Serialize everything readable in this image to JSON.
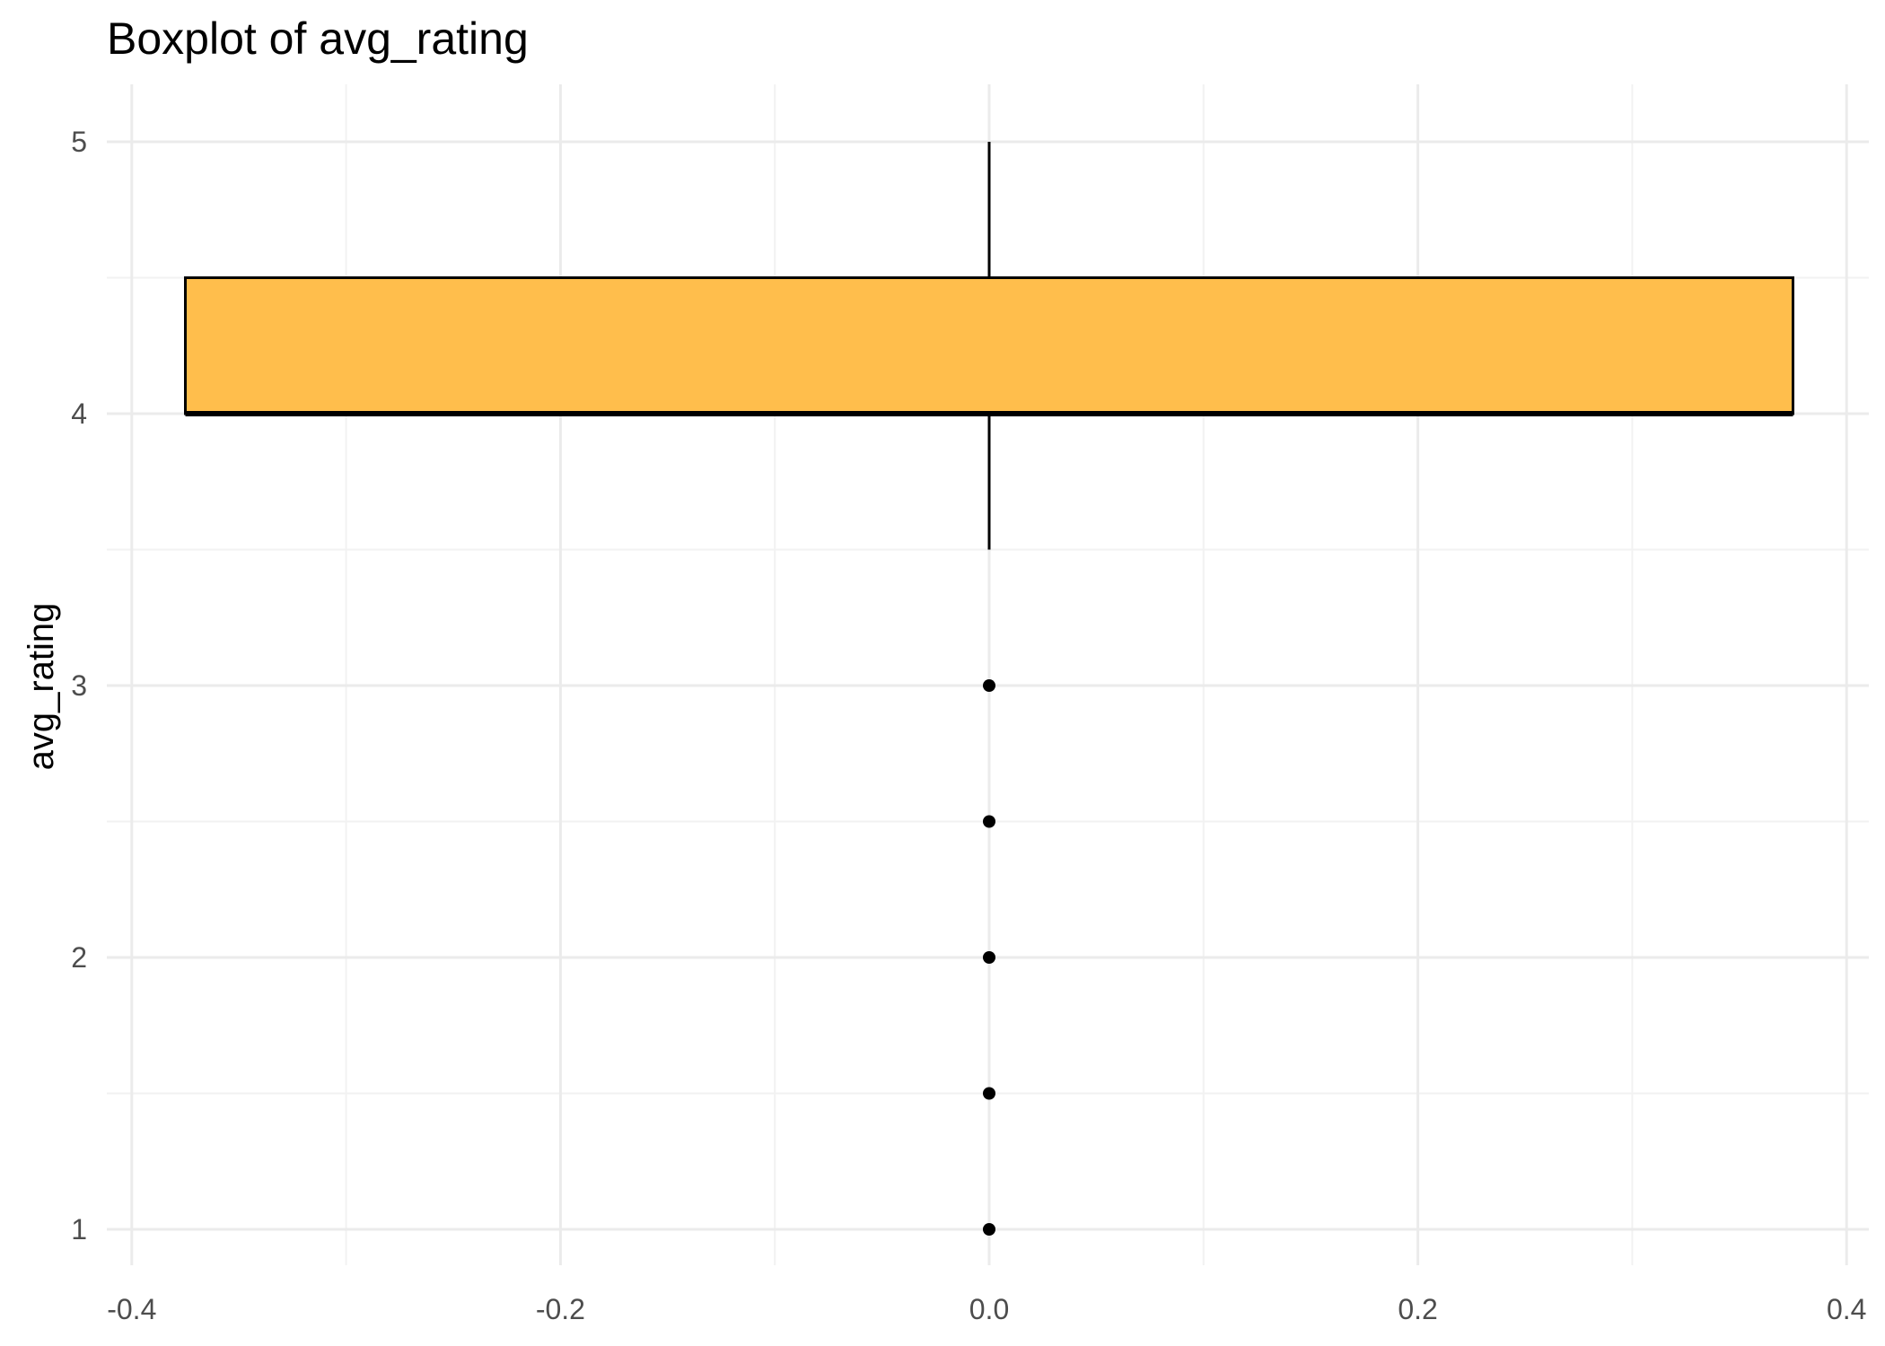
{
  "chart_data": {
    "type": "boxplot",
    "title": "Boxplot of avg_rating",
    "xlabel": "",
    "ylabel": "avg_rating",
    "xlim": [
      -0.4,
      0.4
    ],
    "ylim": [
      1,
      5
    ],
    "x_ticks": [
      -0.4,
      -0.2,
      0.0,
      0.2,
      0.4
    ],
    "x_tick_labels": [
      "-0.4",
      "-0.2",
      "0.0",
      "0.2",
      "0.4"
    ],
    "y_ticks": [
      1,
      2,
      3,
      4,
      5
    ],
    "y_tick_labels": [
      "1",
      "2",
      "3",
      "4",
      "5"
    ],
    "grid": true,
    "box": {
      "x_center": 0.0,
      "x_left": -0.375,
      "x_right": 0.375,
      "q1": 4.0,
      "median": 4.0,
      "q3": 4.5,
      "whisker_low": 3.5,
      "whisker_high": 5.0,
      "outliers": [
        3.0,
        2.5,
        2.0,
        1.5,
        1.0
      ]
    },
    "colors": {
      "box_fill": "#FFBE4C",
      "box_stroke": "#000000",
      "grid_major": "#EBEBEB",
      "grid_minor": "#F2F2F2",
      "outlier": "#000000"
    }
  }
}
